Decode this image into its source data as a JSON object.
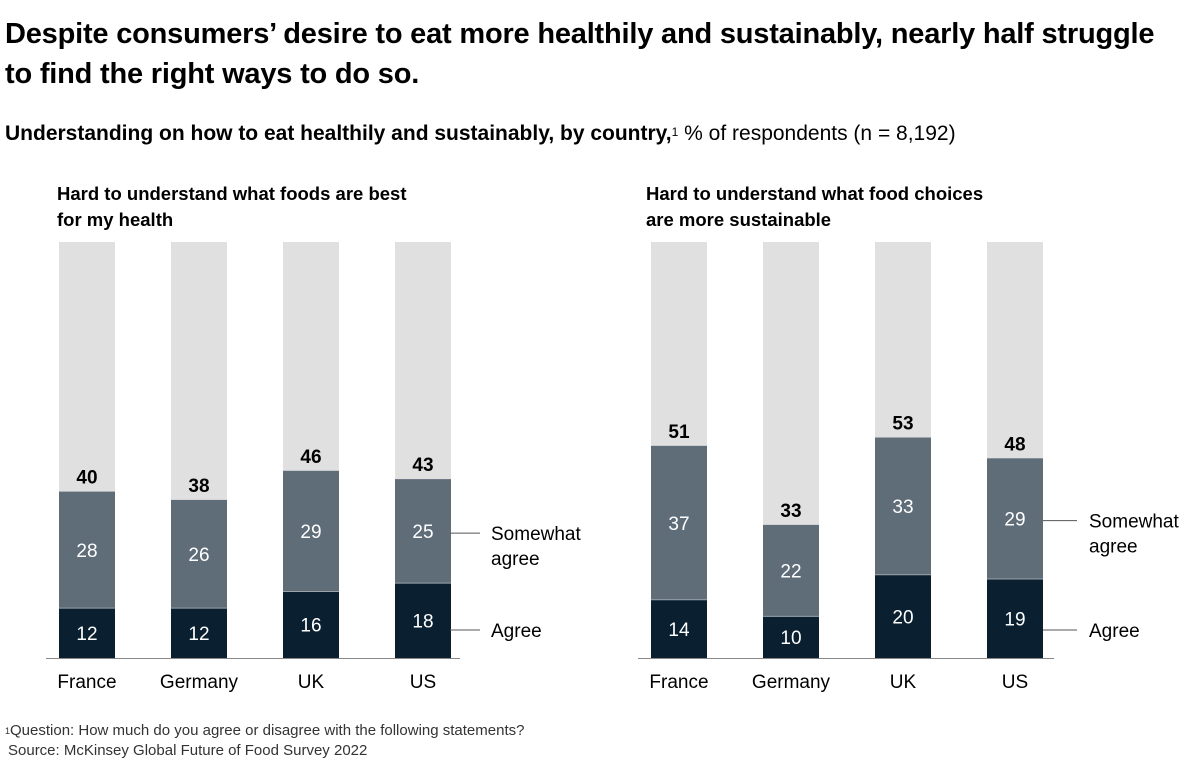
{
  "title": "Despite consumers’ desire to eat more healthily and sustainably, nearly half struggle to find the right ways to do so.",
  "subtitle": {
    "bold": "Understanding on how to eat healthily and sustainably, by country,",
    "sup": "1",
    "normal": " % of respondents (n = 8,192)"
  },
  "colors": {
    "agree": "#0a1f30",
    "somewhat": "#5f6d79",
    "background": "#e0e0e0",
    "axis": "#888888"
  },
  "chart_data": [
    {
      "type": "bar",
      "stacked": true,
      "title": "Hard to understand what foods are best for my health",
      "categories": [
        "France",
        "Germany",
        "UK",
        "US"
      ],
      "series": [
        {
          "name": "Agree",
          "values": [
            12,
            12,
            16,
            18
          ]
        },
        {
          "name": "Somewhat agree",
          "values": [
            28,
            26,
            29,
            25
          ]
        }
      ],
      "totals": [
        40,
        38,
        46,
        43
      ],
      "ylim": [
        0,
        100
      ],
      "legend": "right",
      "grid": false
    },
    {
      "type": "bar",
      "stacked": true,
      "title": "Hard to understand what food choices are more sustainable",
      "categories": [
        "France",
        "Germany",
        "UK",
        "US"
      ],
      "series": [
        {
          "name": "Agree",
          "values": [
            14,
            10,
            20,
            19
          ]
        },
        {
          "name": "Somewhat agree",
          "values": [
            37,
            22,
            33,
            29
          ]
        }
      ],
      "totals": [
        51,
        33,
        53,
        48
      ],
      "ylim": [
        0,
        100
      ],
      "legend": "right",
      "grid": false
    }
  ],
  "legend": {
    "somewhat_line1": "Somewhat",
    "somewhat_line2": "agree",
    "agree": "Agree"
  },
  "footnote": {
    "sup": "1",
    "question": "Question: How much do you agree or disagree with the following statements?",
    "source": "Source: McKinsey Global Future of Food Survey 2022"
  }
}
